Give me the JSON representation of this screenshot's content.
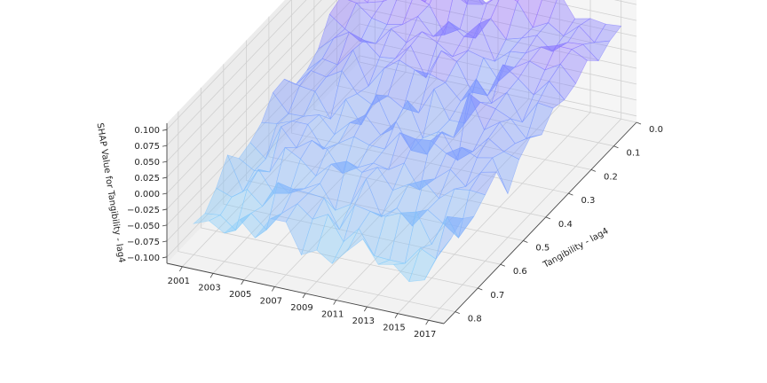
{
  "chart_data": {
    "type": "surface3d",
    "title": "",
    "x_axis": {
      "label": "",
      "ticks": [
        "2001",
        "2003",
        "2005",
        "2007",
        "2009",
        "2011",
        "2013",
        "2015",
        "2017"
      ],
      "range": [
        2000,
        2018
      ]
    },
    "y_axis": {
      "label": "Tangibility - lag4",
      "ticks": [
        "0.0",
        "0.1",
        "0.2",
        "0.3",
        "0.4",
        "0.5",
        "0.6",
        "0.7",
        "0.8"
      ],
      "range": [
        0.0,
        0.85
      ]
    },
    "z_axis": {
      "label": "SHAP Value for Tangibility - lag4",
      "ticks": [
        "−0.100",
        "−0.075",
        "−0.050",
        "−0.025",
        "0.000",
        "0.025",
        "0.050",
        "0.075",
        "0.100"
      ],
      "range": [
        -0.11,
        0.11
      ]
    },
    "colormap": "cool",
    "colors": {
      "low": "#87cefa",
      "mid": "#7b8cff",
      "high": "#c040ff"
    },
    "grid": true,
    "series": [
      {
        "x": [
          2001,
          2002,
          2003,
          2004,
          2005,
          2006,
          2007,
          2008,
          2009,
          2010,
          2011,
          2012,
          2013,
          2014,
          2015,
          2016,
          2017
        ],
        "y": [
          0.0,
          0.05,
          0.1,
          0.15,
          0.2,
          0.25,
          0.3,
          0.35,
          0.4,
          0.45,
          0.5,
          0.55,
          0.6,
          0.65,
          0.7,
          0.75,
          0.8
        ],
        "z_trend": {
          "at_y": [
            0.0,
            0.1,
            0.2,
            0.3,
            0.4,
            0.5,
            0.6,
            0.7,
            0.8
          ],
          "value": [
            0.045,
            0.035,
            0.025,
            0.012,
            0.0,
            -0.012,
            -0.025,
            -0.038,
            -0.05
          ]
        },
        "noise_amplitude": 0.03
      }
    ]
  }
}
